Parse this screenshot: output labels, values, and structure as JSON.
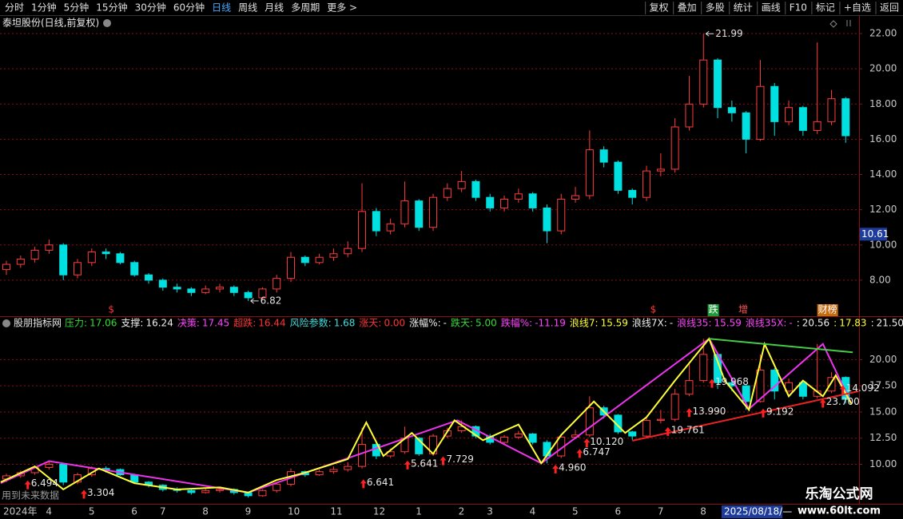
{
  "toolbar": {
    "left": [
      "分时",
      "1分钟",
      "5分钟",
      "15分钟",
      "30分钟",
      "60分钟",
      "日线",
      "周线",
      "月线",
      "多周期",
      "更多 >"
    ],
    "selected_index": 6,
    "right": [
      "复权",
      "叠加",
      "多股",
      "统计",
      "画线",
      "F10",
      "标记",
      "+自选",
      "返回"
    ]
  },
  "stock_title": "泰坦股份(日线,前复权)",
  "indicator_header": {
    "name": "股朋指标网",
    "items": [
      {
        "label": "压力:",
        "value": "17.06",
        "color": "#33dd33"
      },
      {
        "label": "支撑:",
        "value": "16.24",
        "color": "#f0f0f0"
      },
      {
        "label": "决策:",
        "value": "17.45",
        "color": "#ff44ff"
      },
      {
        "label": "超跌:",
        "value": "16.44",
        "color": "#ff3333"
      },
      {
        "label": "风险参数:",
        "value": "1.68",
        "color": "#44dddd"
      },
      {
        "label": "涨天:",
        "value": "0.00",
        "color": "#ff3333"
      },
      {
        "label": "涨幅%:",
        "value": "-",
        "color": "#f0f0f0"
      },
      {
        "label": "跌天:",
        "value": "5.00",
        "color": "#33dd33"
      },
      {
        "label": "跌幅%:",
        "value": "-11.19",
        "color": "#ff44ff"
      },
      {
        "label": "浪线7:",
        "value": "15.59",
        "color": "#ffff33"
      },
      {
        "label": "浪线7X:",
        "value": "-",
        "color": "#f0f0f0"
      },
      {
        "label": "浪线35:",
        "value": "15.59",
        "color": "#ff44ff"
      },
      {
        "label": "浪线35X:",
        "value": "-",
        "color": "#ff44ff"
      },
      {
        "label": ":",
        "value": "20.56",
        "color": "#f0f0f0"
      },
      {
        "label": ":",
        "value": "17.83",
        "color": "#ffff33"
      },
      {
        "label": ":",
        "value": "21.50",
        "color": "#f0f0f0"
      }
    ]
  },
  "notices": {
    "future_data": "用到未来数据",
    "date_box": "2025/08/18/—"
  },
  "watermark": {
    "title": "乐淘公式网",
    "url": "www.60lt.com"
  },
  "chart_data": [
    {
      "type": "candlestick",
      "categories": [
        "2024年",
        null,
        null,
        "4",
        null,
        null,
        "5",
        null,
        null,
        "6",
        null,
        "7",
        null,
        null,
        "8",
        null,
        null,
        "9",
        null,
        null,
        "10",
        null,
        null,
        "11",
        null,
        null,
        "12",
        null,
        null,
        "1",
        null,
        null,
        "2",
        null,
        "3",
        null,
        null,
        "4",
        null,
        null,
        "5",
        null,
        null,
        "6",
        null,
        null,
        "7",
        null,
        null,
        "8",
        null,
        null,
        null,
        null,
        null,
        null,
        null,
        null,
        null,
        null
      ],
      "open": [
        8.6,
        8.9,
        9.2,
        9.7,
        10.0,
        8.3,
        9.0,
        9.6,
        9.5,
        9.0,
        8.3,
        8.0,
        7.6,
        7.5,
        7.3,
        7.5,
        7.6,
        7.3,
        7.0,
        7.5,
        8.1,
        9.3,
        9.0,
        9.3,
        9.5,
        9.8,
        11.9,
        10.8,
        11.2,
        12.5,
        11.0,
        12.7,
        13.2,
        13.6,
        12.7,
        12.1,
        12.6,
        12.9,
        12.1,
        10.8,
        12.6,
        12.8,
        15.4,
        14.7,
        13.1,
        12.7,
        14.2,
        14.3,
        16.7,
        18.0,
        20.5,
        17.8,
        17.5,
        16.0,
        19.0,
        17.0,
        17.8,
        16.5,
        17.0,
        18.3
      ],
      "high": [
        9.1,
        9.4,
        9.9,
        10.3,
        10.1,
        9.2,
        9.8,
        9.8,
        9.6,
        9.1,
        8.4,
        8.1,
        7.8,
        7.6,
        7.7,
        7.8,
        7.7,
        7.4,
        7.6,
        8.3,
        9.6,
        9.4,
        9.5,
        9.8,
        10.2,
        13.5,
        12.1,
        11.5,
        13.6,
        12.6,
        12.9,
        13.5,
        14.2,
        13.7,
        12.9,
        12.8,
        13.2,
        13.0,
        12.3,
        12.9,
        13.3,
        16.5,
        15.6,
        14.8,
        13.2,
        14.5,
        15.2,
        17.2,
        19.6,
        21.99,
        20.6,
        18.2,
        17.6,
        20.5,
        19.2,
        18.2,
        17.9,
        21.5,
        18.8,
        18.4
      ],
      "low": [
        8.3,
        8.7,
        9.0,
        9.5,
        8.0,
        8.1,
        8.8,
        9.2,
        8.9,
        8.2,
        7.8,
        7.4,
        7.3,
        7.1,
        7.2,
        7.3,
        7.1,
        6.82,
        6.9,
        7.3,
        7.9,
        8.8,
        8.9,
        9.1,
        9.3,
        9.6,
        10.5,
        10.6,
        11.0,
        10.8,
        10.8,
        12.5,
        13.0,
        12.5,
        11.9,
        11.9,
        12.4,
        11.9,
        10.1,
        10.6,
        12.4,
        12.6,
        14.4,
        12.9,
        12.3,
        12.5,
        13.9,
        14.1,
        16.5,
        17.8,
        17.2,
        17.0,
        15.2,
        15.9,
        16.2,
        16.8,
        16.2,
        16.3,
        16.8,
        15.8
      ],
      "close": [
        8.9,
        9.2,
        9.7,
        10.0,
        8.3,
        9.0,
        9.6,
        9.5,
        9.0,
        8.3,
        8.0,
        7.6,
        7.5,
        7.3,
        7.5,
        7.6,
        7.3,
        7.0,
        7.5,
        8.1,
        9.3,
        9.0,
        9.3,
        9.5,
        9.8,
        11.9,
        10.8,
        11.2,
        12.5,
        11.0,
        12.7,
        13.2,
        13.6,
        12.7,
        12.1,
        12.6,
        12.9,
        12.1,
        10.8,
        12.6,
        12.8,
        15.4,
        14.7,
        13.1,
        12.7,
        14.2,
        14.3,
        16.7,
        18.0,
        20.5,
        17.8,
        17.5,
        16.0,
        19.0,
        17.0,
        17.8,
        16.5,
        17.0,
        18.3,
        16.2
      ],
      "up_color": "#ff3c3c",
      "down_color": "#00e0e0",
      "xlim": [
        -0.45,
        59.94
      ],
      "ylim": [
        6,
        23
      ],
      "yticks": [
        {
          "value": 8,
          "label": "8.00"
        },
        {
          "value": 10,
          "label": "10.00"
        },
        {
          "value": 12,
          "label": "12.00"
        },
        {
          "value": 14,
          "label": "14.00"
        },
        {
          "value": 16,
          "label": "16.00"
        },
        {
          "value": 18,
          "label": "18.00"
        },
        {
          "value": 20,
          "label": "20.00"
        },
        {
          "value": 22,
          "label": "22.00"
        }
      ],
      "grid": true,
      "last_price": 10.61,
      "annotations": [
        {
          "x": 49,
          "value": 21.99
        },
        {
          "x": 17,
          "value": 6.82
        }
      ],
      "events": [
        {
          "x": 7.1,
          "label": "$",
          "color": "#ff3333"
        },
        {
          "x": 45.2,
          "label": "$",
          "color": "#ff3333"
        },
        {
          "x": 49.3,
          "label": "跌",
          "color": "#ffffff",
          "background": "#1f9a3a"
        },
        {
          "x": 51.4,
          "label": "增",
          "color": "#ff5050"
        },
        {
          "x": 57.0,
          "label": "财榜",
          "color": "#ffffff",
          "background": "#c46a10"
        }
      ]
    },
    {
      "type": "line",
      "xlim": [
        -0.45,
        59.94
      ],
      "ylim": [
        6.3,
        24
      ],
      "yticks": [
        {
          "value": 10,
          "label": "10.00"
        },
        {
          "value": 12.5,
          "label": "12.50"
        },
        {
          "value": 15,
          "label": "15.00"
        },
        {
          "value": 17.5,
          "label": "17.50"
        },
        {
          "value": 20,
          "label": "20.00"
        }
      ],
      "grid": true,
      "series": [
        {
          "color": "#ee33ee",
          "x": [
            -0.4,
            3,
            17,
            31.7,
            37.6,
            49.4,
            52.2,
            57.4,
            59.4
          ],
          "values": [
            8.2,
            10.3,
            7.3,
            14.2,
            10.1,
            22.0,
            15.3,
            21.5,
            15.8
          ]
        },
        {
          "color": "#ffff33",
          "x": [
            -0.4,
            2,
            4,
            6.5,
            9,
            12,
            15,
            17,
            19,
            21,
            24,
            25.3,
            26.5,
            28.5,
            30,
            31.5,
            33.5,
            36,
            37.6,
            39,
            41.3,
            43.5,
            45,
            47,
            49.4,
            50.5,
            52.2,
            53.3,
            55,
            56,
            57.4,
            58.3,
            59.4
          ],
          "values": [
            8.3,
            9.8,
            7.6,
            9.6,
            8.2,
            7.6,
            7.8,
            7.3,
            8.5,
            9.2,
            10.5,
            14.0,
            10.8,
            13.0,
            11.0,
            14.2,
            12.3,
            13.8,
            10.1,
            12.8,
            16.0,
            13.0,
            14.5,
            18.0,
            22.0,
            18.0,
            15.2,
            21.5,
            16.5,
            18.0,
            16.5,
            18.5,
            15.8
          ]
        },
        {
          "color": "#44cc44",
          "x": [
            49.4,
            59.5
          ],
          "values": [
            22.0,
            20.7
          ]
        },
        {
          "color": "#ee2222",
          "x": [
            44,
            59.9
          ],
          "values": [
            12.25,
            16.98
          ]
        }
      ],
      "marker_color": "#ff2020",
      "markers": [
        {
          "x": 1.5,
          "y": 8.0,
          "label": "6.494"
        },
        {
          "x": 5.45,
          "y": 7.1,
          "label": "3.304"
        },
        {
          "x": 25.1,
          "y": 8.1,
          "label": "6.641"
        },
        {
          "x": 28.2,
          "y": 9.9,
          "label": "5.641"
        },
        {
          "x": 30.7,
          "y": 10.3,
          "label": "7.729"
        },
        {
          "x": 38.6,
          "y": 9.5,
          "label": "4.960"
        },
        {
          "x": 40.3,
          "y": 11.0,
          "label": "6.747"
        },
        {
          "x": 40.8,
          "y": 12.0,
          "label": "10.120"
        },
        {
          "x": 46.5,
          "y": 13.1,
          "label": "19.761"
        },
        {
          "x": 48.0,
          "y": 14.9,
          "label": "13.990"
        },
        {
          "x": 49.6,
          "y": 17.7,
          "label": "19.968"
        },
        {
          "x": 53.2,
          "y": 14.85,
          "label": "9.192"
        },
        {
          "x": 57.4,
          "y": 15.8,
          "label": "23.700"
        },
        {
          "x": 58.8,
          "y": 17.1,
          "label": "14.092"
        }
      ]
    }
  ]
}
